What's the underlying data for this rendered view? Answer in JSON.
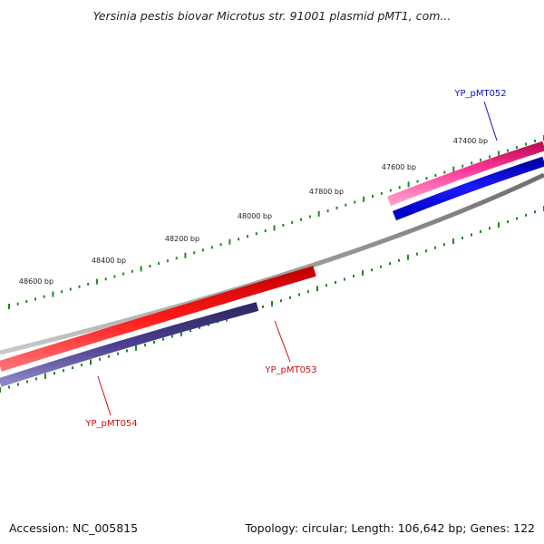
{
  "title": "Yersinia pestis biovar Microtus str. 91001 plasmid pMT1, com...",
  "footer": {
    "accession": "Accession: NC_005815",
    "summary": "Topology: circular; Length: 106,642 bp; Genes: 122"
  },
  "colors": {
    "backbone": "#8a8a8a",
    "ticks": "#1f8a1f",
    "forward_gene": "#e8207a",
    "forward_cds": "#1010e0",
    "reverse_cds": "#e81010",
    "reverse_gene": "#4a3f8e",
    "label_blue": "#1010c0",
    "label_red": "#cc1111"
  },
  "scale_labels": [
    {
      "bp": 47400,
      "text": "47400 bp"
    },
    {
      "bp": 47600,
      "text": "47600 bp"
    },
    {
      "bp": 47800,
      "text": "47800 bp"
    },
    {
      "bp": 48000,
      "text": "48000 bp"
    },
    {
      "bp": 48200,
      "text": "48200 bp"
    },
    {
      "bp": 48400,
      "text": "48400 bp"
    },
    {
      "bp": 48600,
      "text": "48600 bp"
    }
  ],
  "features": [
    {
      "label": "YP_pMT052",
      "strand": "forward",
      "kind": "gene"
    },
    {
      "label": "YP_pMT053",
      "strand": "reverse",
      "kind": "cds"
    },
    {
      "label": "YP_pMT054",
      "strand": "reverse",
      "kind": "gene"
    }
  ]
}
